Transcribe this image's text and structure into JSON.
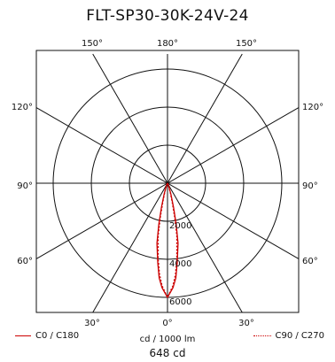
{
  "chart_data": {
    "type": "polar",
    "title": "FLT-SP30-30K-24V-24",
    "unit_label": "cd / 1000 lm",
    "peak_label": "648 cd",
    "angle_ticks": {
      "top": [
        "150°",
        "180°",
        "150°"
      ],
      "left": [
        "120°",
        "90°",
        "60°"
      ],
      "right": [
        "120°",
        "90°",
        "60°"
      ],
      "bottom": [
        "30°",
        "0°",
        "30°"
      ]
    },
    "radial_labels": [
      "2000",
      "4000",
      "6000"
    ],
    "r_max": 6000,
    "series": [
      {
        "name": "C0 / C180",
        "style": "solid",
        "color": "#cc0000",
        "points": [
          [
            0,
            6000
          ],
          [
            3,
            5500
          ],
          [
            5,
            5000
          ],
          [
            7,
            4200
          ],
          [
            10,
            3200
          ],
          [
            12,
            2200
          ],
          [
            14,
            1300
          ],
          [
            17,
            600
          ],
          [
            22,
            200
          ],
          [
            30,
            50
          ],
          [
            45,
            0
          ]
        ]
      },
      {
        "name": "C90 / C270",
        "style": "dotted",
        "color": "#cc0000",
        "points": [
          [
            0,
            6000
          ],
          [
            3,
            5400
          ],
          [
            5,
            4800
          ],
          [
            7,
            4000
          ],
          [
            10,
            2800
          ],
          [
            12,
            1800
          ],
          [
            14,
            1000
          ],
          [
            17,
            500
          ],
          [
            22,
            150
          ],
          [
            30,
            40
          ],
          [
            45,
            0
          ]
        ]
      }
    ]
  }
}
